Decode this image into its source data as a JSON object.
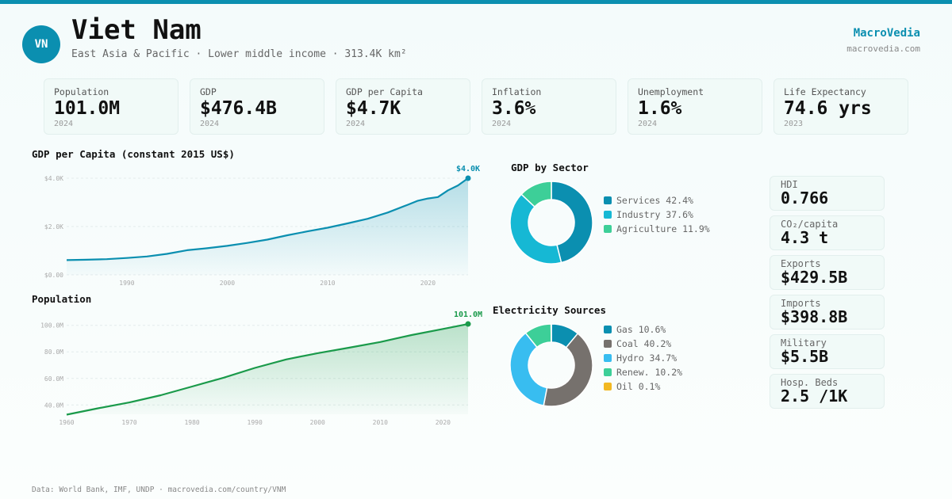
{
  "colors": {
    "accent": "#0b8fb0",
    "gdp_line": "#0b8fb0",
    "pop_line": "#1a9a4a",
    "services": "#0b8fb0",
    "industry": "#16b8d4",
    "agriculture": "#3dcf98",
    "gas": "#0b8fb0",
    "coal": "#76716d",
    "hydro": "#38bdf0",
    "renew": "#3dcf98",
    "oil": "#f2b822"
  },
  "header": {
    "badge": "VN",
    "title": "Viet Nam",
    "subtitle": "East Asia & Pacific · Lower middle income · 313.4K km²",
    "brand": "MacroVedia",
    "brand_url": "macrovedia.com"
  },
  "stats": [
    {
      "label": "Population",
      "value": "101.0M",
      "year": "2024"
    },
    {
      "label": "GDP",
      "value": "$476.4B",
      "year": "2024"
    },
    {
      "label": "GDP per Capita",
      "value": "$4.7K",
      "year": "2024"
    },
    {
      "label": "Inflation",
      "value": "3.6%",
      "year": "2024"
    },
    {
      "label": "Unemployment",
      "value": "1.6%",
      "year": "2024"
    },
    {
      "label": "Life Expectancy",
      "value": "74.6 yrs",
      "year": "2023"
    }
  ],
  "metrics": [
    {
      "label": "HDI",
      "value": "0.766"
    },
    {
      "label": "CO₂/capita",
      "value": "4.3 t"
    },
    {
      "label": "Exports",
      "value": "$429.5B"
    },
    {
      "label": "Imports",
      "value": "$398.8B"
    },
    {
      "label": "Military",
      "value": "$5.5B"
    },
    {
      "label": "Hosp. Beds",
      "value": "2.5 /1K"
    }
  ],
  "footer": "Data: World Bank, IMF, UNDP · macrovedia.com/country/VNM",
  "chart_data": [
    {
      "type": "area",
      "title": "GDP per Capita (constant 2015 US$)",
      "end_label": "$4.0K",
      "y_ticks": [
        "$0.00",
        "$2.0K",
        "$4.0K"
      ],
      "y_tick_values": [
        0,
        2000,
        4000
      ],
      "x_ticks": [
        "1990",
        "2000",
        "2010",
        "2020"
      ],
      "x_tick_values": [
        1990,
        2000,
        2010,
        2020
      ],
      "xlim": [
        1984,
        2024
      ],
      "ylim": [
        0,
        4000
      ],
      "x": [
        1984,
        1986,
        1988,
        1990,
        1992,
        1994,
        1996,
        1998,
        2000,
        2002,
        2004,
        2006,
        2008,
        2010,
        2012,
        2014,
        2016,
        2018,
        2019,
        2020,
        2021,
        2022,
        2023,
        2024
      ],
      "values": [
        610,
        625,
        650,
        700,
        760,
        870,
        1020,
        1100,
        1200,
        1320,
        1460,
        1640,
        1800,
        1950,
        2130,
        2320,
        2580,
        2900,
        3070,
        3160,
        3220,
        3500,
        3700,
        4000
      ]
    },
    {
      "type": "area",
      "title": "Population",
      "end_label": "101.0M",
      "y_ticks": [
        "40.0M",
        "60.0M",
        "80.0M",
        "100.0M"
      ],
      "y_tick_values": [
        40,
        60,
        80,
        100
      ],
      "x_ticks": [
        "1960",
        "1970",
        "1980",
        "1990",
        "2000",
        "2010",
        "2020"
      ],
      "x_tick_values": [
        1960,
        1970,
        1980,
        1990,
        2000,
        2010,
        2020
      ],
      "xlim": [
        1960,
        2024
      ],
      "ylim": [
        33,
        107
      ],
      "x": [
        1960,
        1965,
        1970,
        1975,
        1980,
        1985,
        1990,
        1995,
        2000,
        2005,
        2010,
        2015,
        2020,
        2024
      ],
      "values": [
        32.7,
        37.5,
        41.9,
        47.3,
        53.9,
        60.5,
        67.9,
        74.3,
        79.0,
        83.1,
        87.4,
        92.7,
        97.3,
        101.0
      ]
    },
    {
      "type": "pie",
      "title": "GDP by Sector",
      "categories": [
        "Services",
        "Industry",
        "Agriculture"
      ],
      "values": [
        42.4,
        37.6,
        11.9
      ],
      "labels": [
        "Services 42.4%",
        "Industry 37.6%",
        "Agriculture 11.9%"
      ]
    },
    {
      "type": "pie",
      "title": "Electricity Sources",
      "categories": [
        "Gas",
        "Coal",
        "Hydro",
        "Renew.",
        "Oil"
      ],
      "values": [
        10.6,
        40.2,
        34.7,
        10.2,
        0.1
      ],
      "labels": [
        "Gas 10.6%",
        "Coal 40.2%",
        "Hydro 34.7%",
        "Renew. 10.2%",
        "Oil 0.1%"
      ]
    }
  ]
}
